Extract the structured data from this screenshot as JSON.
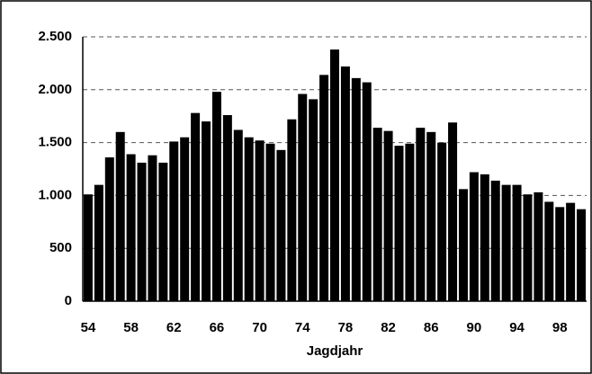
{
  "chart_data": {
    "type": "bar",
    "x_label": "Jagdjahr",
    "categories": [
      "54",
      null,
      null,
      null,
      "58",
      null,
      null,
      null,
      "62",
      null,
      null,
      null,
      "66",
      null,
      null,
      null,
      "70",
      null,
      null,
      null,
      "74",
      null,
      null,
      null,
      "78",
      null,
      null,
      null,
      "82",
      null,
      null,
      null,
      "86",
      null,
      null,
      null,
      "90",
      null,
      null,
      null,
      "94",
      null,
      null,
      null,
      "98",
      null,
      null
    ],
    "values": [
      1010,
      1100,
      1360,
      1600,
      1390,
      1310,
      1380,
      1310,
      1510,
      1550,
      1780,
      1700,
      1980,
      1760,
      1620,
      1550,
      1520,
      1490,
      1430,
      1720,
      1960,
      1910,
      2140,
      2380,
      2220,
      2110,
      2070,
      1640,
      1610,
      1470,
      1490,
      1640,
      1600,
      1500,
      1690,
      1060,
      1220,
      1200,
      1140,
      1100,
      1100,
      1010,
      1030,
      940,
      890,
      930,
      870
    ],
    "color": "#000000",
    "ylim": [
      0,
      2500
    ],
    "yticks": [
      0,
      500,
      {
        "value": 1000,
        "label": "1.000"
      },
      {
        "value": 1500,
        "label": "1.500"
      },
      {
        "value": 2000,
        "label": "2.000"
      },
      {
        "value": 2500,
        "label": "2.500"
      }
    ],
    "grid": true
  }
}
